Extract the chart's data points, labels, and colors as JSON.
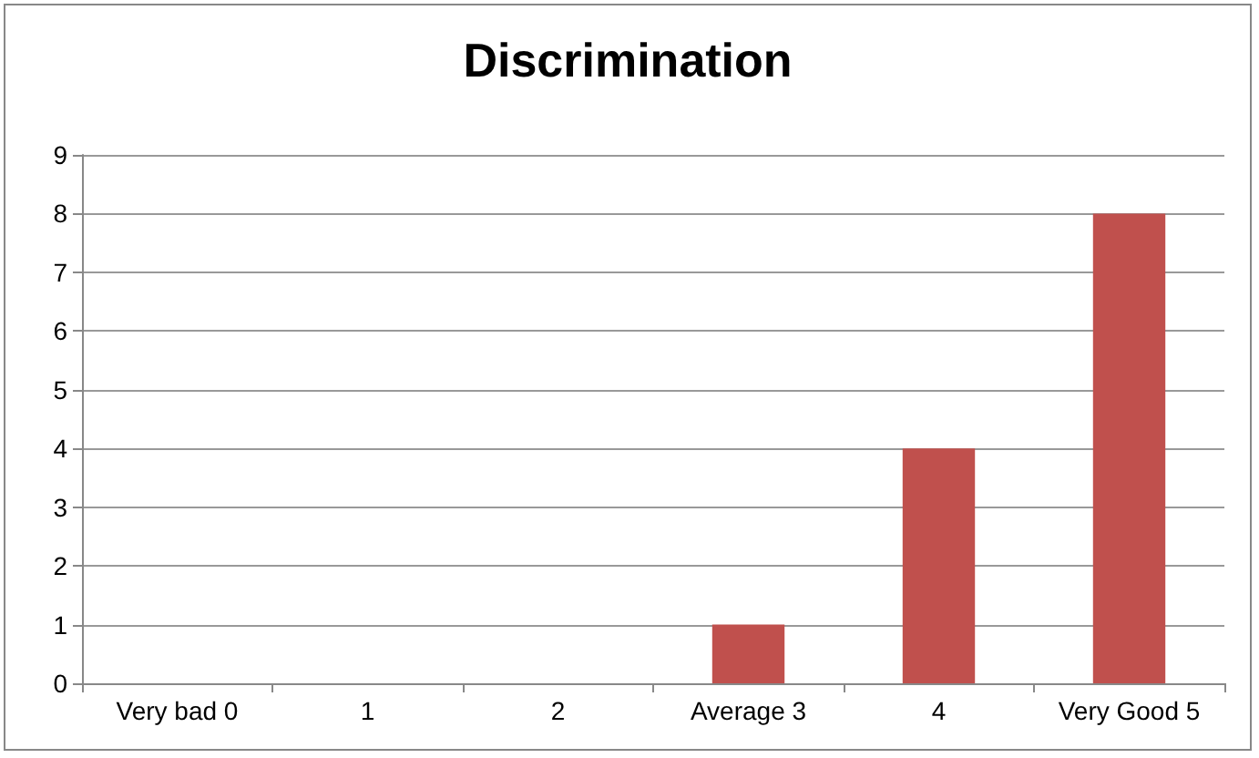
{
  "chart_data": {
    "type": "bar",
    "title": "Discrimination",
    "categories": [
      "Very bad 0",
      "1",
      "2",
      "Average 3",
      "4",
      "Very Good 5"
    ],
    "values": [
      0,
      0,
      0,
      1,
      4,
      8
    ],
    "color": "#c0504d",
    "ylim": [
      0,
      9
    ],
    "yticks": [
      0,
      1,
      2,
      3,
      4,
      5,
      6,
      7,
      8,
      9
    ],
    "grid": "y"
  }
}
